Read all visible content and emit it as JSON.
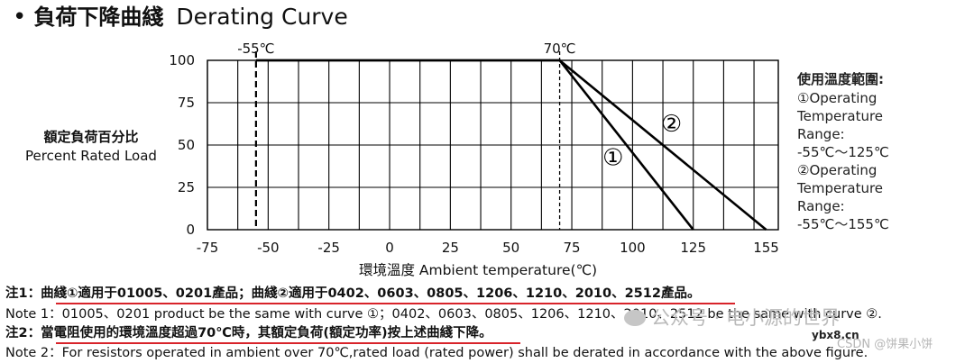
{
  "title": {
    "bullet": "•",
    "zh": "負荷下降曲綫",
    "en": "Derating Curve"
  },
  "y_label": {
    "zh": "額定負荷百分比",
    "en": "Percent Rated Load"
  },
  "legend": {
    "heading": "使用溫度範圍:",
    "items": [
      "①Operating\nTemperature\nRange:\n-55℃～125℃",
      "②Operating\nTemperature\nRange:\n-55℃～155℃"
    ]
  },
  "chart_data": {
    "type": "line",
    "title": "Derating Curve",
    "xlabel": "環境溫度 Ambient temperature(℃)",
    "ylabel": "額定負荷百分比 Percent Rated Load",
    "xlim": [
      -75,
      160
    ],
    "ylim": [
      0,
      100
    ],
    "x_ticks": [
      "-75",
      "-50",
      "-25",
      "0",
      "25",
      "50",
      "75",
      "100",
      "125",
      "155"
    ],
    "x_tick_values": [
      -75,
      -50,
      -25,
      0,
      25,
      50,
      75,
      100,
      125,
      155
    ],
    "y_ticks": [
      "0",
      "25",
      "50",
      "75",
      "100"
    ],
    "y_tick_values": [
      0,
      25,
      50,
      75,
      100
    ],
    "grid": true,
    "reference_lines": [
      {
        "x": -55,
        "label": "-55℃"
      },
      {
        "x": 70,
        "label": "70℃"
      }
    ],
    "series": [
      {
        "name": "①",
        "x": [
          -55,
          70,
          125
        ],
        "y": [
          100,
          100,
          0
        ]
      },
      {
        "name": "②",
        "x": [
          -55,
          70,
          155
        ],
        "y": [
          100,
          100,
          0
        ]
      }
    ],
    "annotations": [
      {
        "text": "①",
        "x": 92,
        "y": 38
      },
      {
        "text": "②",
        "x": 116,
        "y": 58
      }
    ]
  },
  "notes": {
    "note1": "注1：曲綫①適用于01005、0201產品；曲綫②適用于0402、0603、0805、1206、1210、2010、2512產品。",
    "note1_en": "Note 1：01005、0201 product be the same with curve ①；0402、0603、0805、1206、1210、2010、2512 be the same with curve ②.",
    "note2": "注2：當電阻使用的環境溫度超過70℃時，其額定負荷(額定功率)按上述曲綫下降。",
    "note2_en": "Note 2：For resistors operated in ambient over 70℃,rated load (rated power) shall be derated in accordance with the above figure."
  },
  "watermarks": {
    "wechat": "公众号 · 电小源的世界",
    "site": "ybx8.cn",
    "csdn": "CSDN @饼果小饼"
  },
  "colors": {
    "highlight_underline": "#d8232a",
    "line": "#000000"
  }
}
